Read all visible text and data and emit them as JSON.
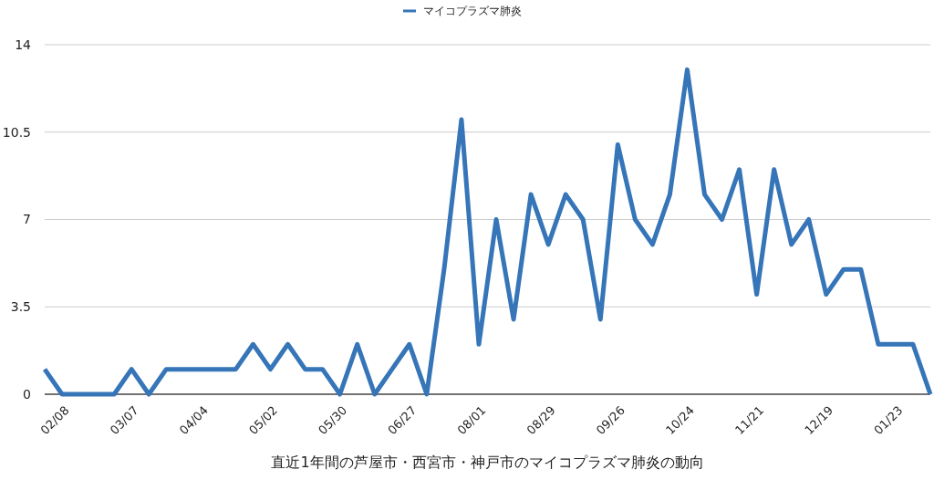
{
  "chart_data": {
    "type": "line",
    "xlabel": "直近1年間の芦屋市・西宮市・神戸市のマイコプラズマ肺炎の動向",
    "categories": [
      null,
      "02/08",
      null,
      null,
      null,
      "03/07",
      null,
      null,
      null,
      "04/04",
      null,
      null,
      null,
      "05/02",
      null,
      null,
      null,
      "05/30",
      null,
      null,
      null,
      "06/27",
      null,
      null,
      null,
      "08/01",
      null,
      null,
      null,
      "08/29",
      null,
      null,
      null,
      "09/26",
      null,
      null,
      null,
      "10/24",
      null,
      null,
      null,
      "11/21",
      null,
      null,
      null,
      "12/19",
      null,
      null,
      null,
      "01/23",
      null,
      null
    ],
    "series": [
      {
        "name": "マイコプラズマ肺炎",
        "color": "#3575b8",
        "values": [
          1,
          0,
          0,
          0,
          0,
          1,
          0,
          1,
          1,
          1,
          1,
          1,
          2,
          1,
          2,
          1,
          1,
          0,
          2,
          0,
          1,
          2,
          0,
          5,
          11,
          2,
          7,
          3,
          8,
          6,
          8,
          7,
          3,
          10,
          7,
          6,
          8,
          13,
          8,
          7,
          9,
          4,
          9,
          6,
          7,
          4,
          5,
          5,
          2,
          2,
          2,
          0
        ]
      }
    ],
    "ylim": [
      0,
      14
    ],
    "yticks": [
      0,
      3.5,
      7,
      10.5,
      14
    ],
    "grid": "y",
    "legend": "top",
    "marker": "none",
    "line_style": "solid"
  }
}
